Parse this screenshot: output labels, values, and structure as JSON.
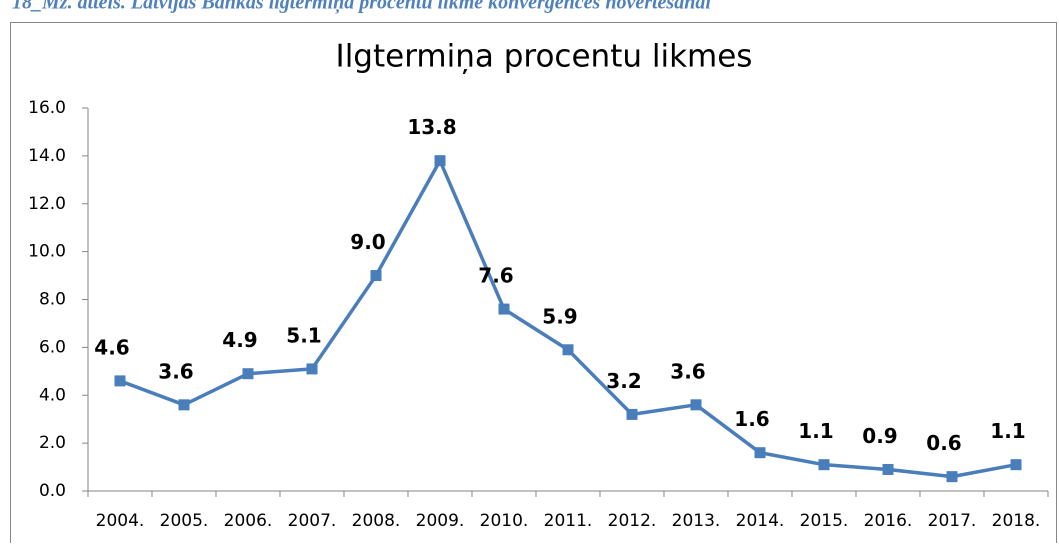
{
  "caption": "18_Mz. attēls. Latvijas Bankas ilgtermiņa procentu likme konverģences novērtēšanai",
  "chart_data": {
    "type": "line",
    "title": "Ilgtermiņa procentu likmes",
    "categories": [
      "2004.",
      "2005.",
      "2006.",
      "2007.",
      "2008.",
      "2009.",
      "2010.",
      "2011.",
      "2012.",
      "2013.",
      "2014.",
      "2015.",
      "2016.",
      "2017.",
      "2018."
    ],
    "values": [
      4.6,
      3.6,
      4.9,
      5.1,
      9.0,
      13.8,
      7.6,
      5.9,
      3.2,
      3.6,
      1.6,
      1.1,
      0.9,
      0.6,
      1.1
    ],
    "value_labels": [
      "4.6",
      "3.6",
      "4.9",
      "5.1",
      "9.0",
      "13.8",
      "7.6",
      "5.9",
      "3.2",
      "3.6",
      "1.6",
      "1.1",
      "0.9",
      "0.6",
      "1.1"
    ],
    "color": "#4a7ebb",
    "ylim": [
      0,
      16
    ],
    "yticks": [
      {
        "value": 0,
        "label": "0.0"
      },
      {
        "value": 2,
        "label": "2.0"
      },
      {
        "value": 4,
        "label": "4.0"
      },
      {
        "value": 6,
        "label": "6.0"
      },
      {
        "value": 8,
        "label": "8.0"
      },
      {
        "value": 10,
        "label": "10.0"
      },
      {
        "value": 12,
        "label": "12.0"
      },
      {
        "value": 14,
        "label": "14.0"
      },
      {
        "value": 16,
        "label": "16.0"
      }
    ],
    "grid": false
  }
}
